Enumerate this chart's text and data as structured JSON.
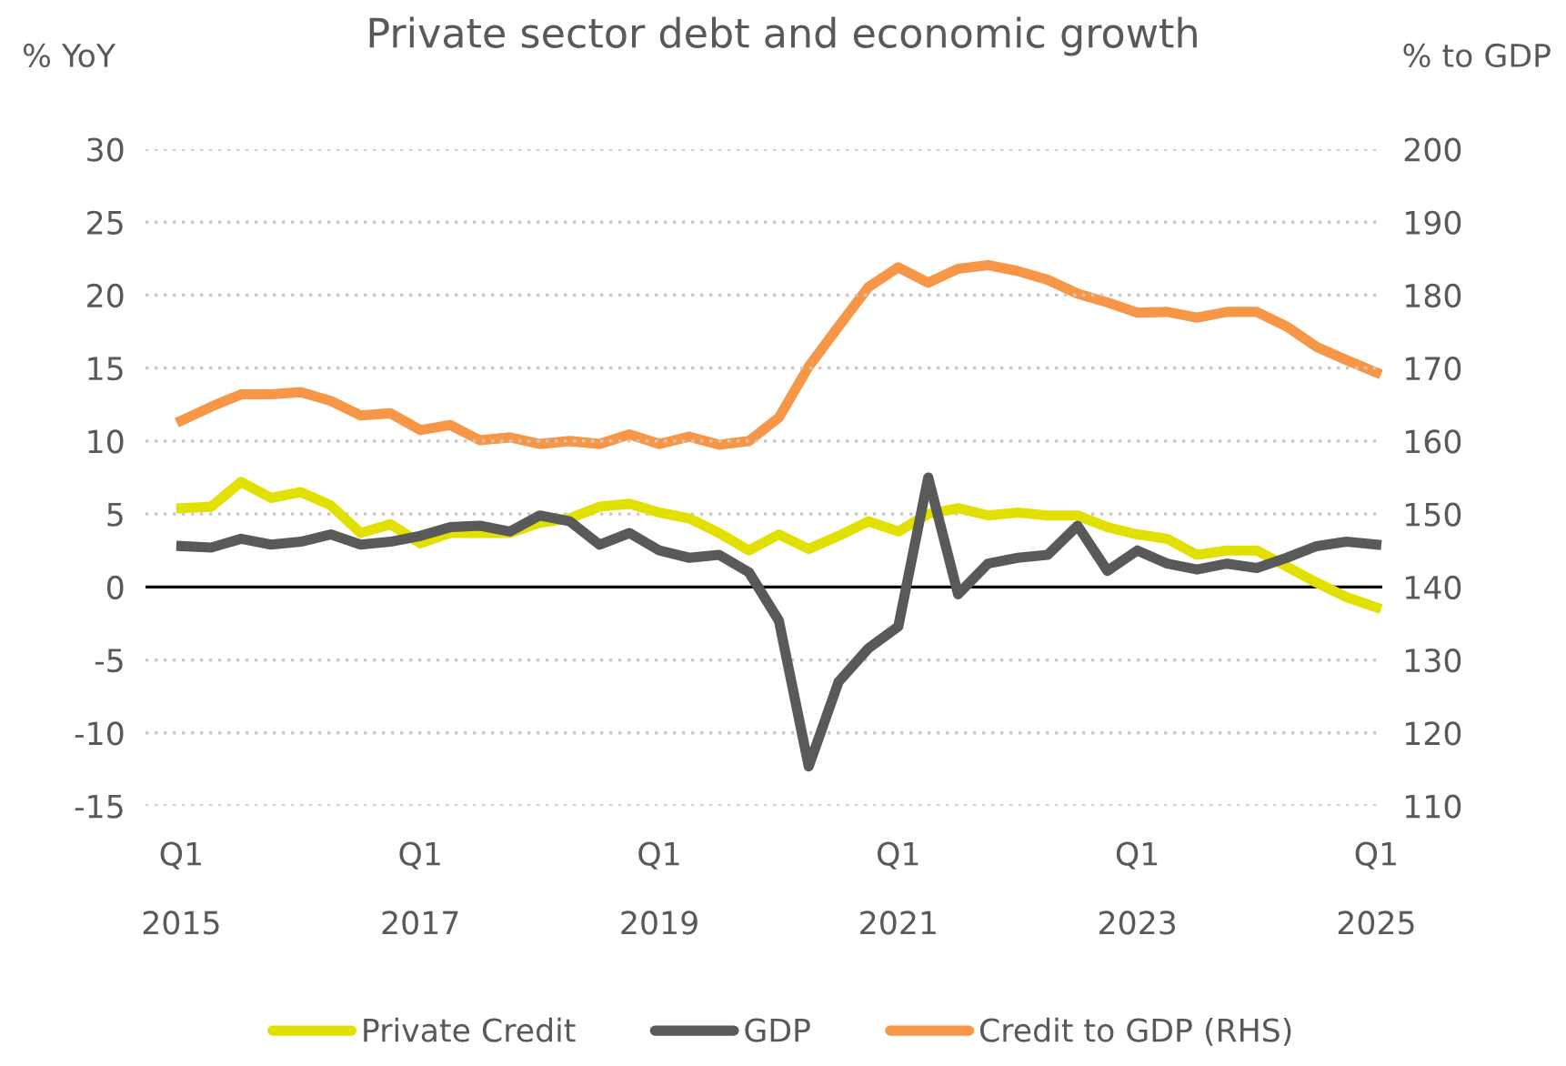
{
  "chart_data": {
    "type": "line",
    "title": "Private sector debt and economic growth",
    "ylabel": "% YoY",
    "y2label": "% to GDP",
    "categories": [
      "Q1\n2015",
      null,
      null,
      null,
      null,
      null,
      null,
      null,
      "Q1\n2017",
      null,
      null,
      null,
      null,
      null,
      null,
      null,
      "Q1\n2019",
      null,
      null,
      null,
      null,
      null,
      null,
      null,
      "Q1\n2021",
      null,
      null,
      null,
      null,
      null,
      null,
      null,
      "Q1\n2023",
      null,
      null,
      null,
      null,
      null,
      null,
      null,
      "Q1\n2025"
    ],
    "series": [
      {
        "name": "Private Credit",
        "color": "#e1e000",
        "values": [
          5.4,
          5.5,
          7.2,
          6.1,
          6.5,
          5.6,
          3.7,
          4.3,
          3.0,
          3.7,
          3.7,
          3.7,
          4.4,
          4.7,
          5.5,
          5.7,
          5.1,
          4.7,
          3.7,
          2.5,
          3.6,
          2.6,
          3.5,
          4.5,
          3.8,
          5.0,
          5.4,
          4.9,
          5.1,
          4.9,
          4.9,
          4.1,
          3.6,
          3.3,
          2.2,
          2.5,
          2.5,
          1.4,
          0.3,
          -0.7,
          -1.4
        ]
      },
      {
        "name": "GDP",
        "color": "#595959",
        "values": [
          2.8,
          2.7,
          3.3,
          2.9,
          3.1,
          3.6,
          2.9,
          3.1,
          3.5,
          4.1,
          4.2,
          3.8,
          4.9,
          4.5,
          2.9,
          3.7,
          2.5,
          2.0,
          2.2,
          1.0,
          -2.3,
          -12.3,
          -6.5,
          -4.2,
          -2.7,
          7.5,
          -0.5,
          1.6,
          2.0,
          2.2,
          4.2,
          1.1,
          2.5,
          1.6,
          1.2,
          1.6,
          1.3,
          2.0,
          2.8,
          3.1,
          2.9
        ]
      },
      {
        "name": "Credit to GDP (RHS)",
        "color": "#f79646",
        "axis": "y2",
        "values": [
          162.8,
          164.7,
          166.4,
          166.4,
          166.7,
          165.5,
          163.5,
          163.8,
          161.5,
          162.2,
          160.1,
          160.5,
          159.6,
          160.0,
          159.6,
          160.9,
          159.6,
          160.6,
          159.5,
          160.0,
          163.2,
          170.2,
          175.7,
          181.1,
          183.8,
          181.7,
          183.6,
          184.1,
          183.3,
          182.1,
          180.2,
          179.0,
          177.6,
          177.7,
          176.9,
          177.7,
          177.7,
          175.7,
          172.9,
          171.1,
          169.4
        ]
      }
    ],
    "ylim": [
      -15,
      30
    ],
    "yticks": [
      -15,
      -10,
      -5,
      0,
      5,
      10,
      15,
      20,
      25,
      30
    ],
    "y2lim": [
      110,
      200
    ],
    "y2ticks": [
      110,
      120,
      130,
      140,
      150,
      160,
      170,
      180,
      190,
      200
    ],
    "ref_lines": [
      {
        "axis": "y",
        "value": 0,
        "color": "#000000"
      }
    ],
    "grid": "y",
    "legend": "bottom",
    "marker": "none",
    "line_style": "solid"
  }
}
